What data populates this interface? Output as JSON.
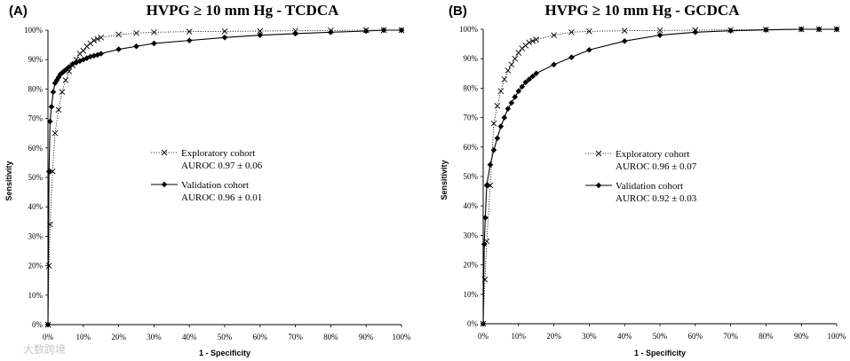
{
  "chart_data": [
    {
      "type": "line",
      "panel_label": "(A)",
      "title": "HVPG ≥ 10 mm Hg - TCDCA",
      "xlabel": "1 - Specificity",
      "ylabel": "Sensitivity",
      "xlim": [
        0,
        100
      ],
      "ylim": [
        0,
        100
      ],
      "x_ticks": [
        "0%",
        "10%",
        "20%",
        "30%",
        "40%",
        "50%",
        "60%",
        "70%",
        "80%",
        "90%",
        "100%"
      ],
      "y_ticks": [
        "0%",
        "10%",
        "20%",
        "30%",
        "40%",
        "50%",
        "60%",
        "70%",
        "80%",
        "90%",
        "100%"
      ],
      "legend": [
        {
          "name": "Exploratory cohort",
          "auroc": "AUROC 0.97 ± 0.06"
        },
        {
          "name": "Validation cohort",
          "auroc": "AUROC 0.96 ± 0.01"
        }
      ],
      "series": [
        {
          "name": "Exploratory cohort",
          "marker": "x",
          "line": "dotted",
          "x": [
            0,
            0.3,
            0.6,
            1.3,
            2,
            3,
            4,
            5,
            6,
            7,
            8,
            9,
            10,
            11,
            12,
            13,
            14,
            15,
            20,
            25,
            30,
            40,
            50,
            60,
            70,
            80,
            90,
            95,
            100
          ],
          "y": [
            0,
            20,
            34,
            52,
            65,
            73,
            79,
            83,
            86,
            88,
            90,
            92,
            93,
            94.5,
            95.5,
            96.5,
            97,
            97.5,
            98.5,
            99,
            99.3,
            99.5,
            99.6,
            99.7,
            99.8,
            99.9,
            100,
            100,
            100
          ]
        },
        {
          "name": "Validation cohort",
          "marker": "diamond",
          "line": "solid",
          "x": [
            0,
            0.3,
            0.6,
            1,
            1.5,
            2,
            2.5,
            3,
            3.5,
            4,
            4.5,
            5,
            5.5,
            6,
            7,
            8,
            9,
            10,
            11,
            12,
            13,
            14,
            15,
            20,
            25,
            30,
            40,
            50,
            60,
            70,
            80,
            90,
            95,
            100
          ],
          "y": [
            0,
            52,
            69,
            74,
            79,
            82,
            83,
            84,
            85,
            85.5,
            86,
            86.5,
            87,
            87.5,
            88.5,
            89,
            89.5,
            90,
            90.5,
            91,
            91.3,
            91.6,
            92,
            93.5,
            94.5,
            95.5,
            96.5,
            97.5,
            98.3,
            98.8,
            99.3,
            99.7,
            100,
            100
          ]
        }
      ]
    },
    {
      "type": "line",
      "panel_label": "(B)",
      "title": "HVPG ≥ 10 mm Hg - GCDCA",
      "xlabel": "1 - Specificity",
      "ylabel": "Sensitivity",
      "xlim": [
        0,
        100
      ],
      "ylim": [
        0,
        100
      ],
      "x_ticks": [
        "0%",
        "10%",
        "20%",
        "30%",
        "40%",
        "50%",
        "60%",
        "70%",
        "80%",
        "90%",
        "100%"
      ],
      "y_ticks": [
        "0%",
        "10%",
        "20%",
        "30%",
        "40%",
        "50%",
        "60%",
        "70%",
        "80%",
        "90%",
        "100%"
      ],
      "legend": [
        {
          "name": "Exploratory cohort",
          "auroc": "AUROC 0.96 ± 0.07"
        },
        {
          "name": "Validation cohort",
          "auroc": "AUROC 0.92 ± 0.03"
        }
      ],
      "series": [
        {
          "name": "Exploratory cohort",
          "marker": "x",
          "line": "dotted",
          "x": [
            0,
            0.5,
            1,
            2,
            3,
            4,
            5,
            6,
            7,
            8,
            9,
            10,
            11,
            12,
            13,
            14,
            15,
            20,
            25,
            30,
            40,
            50,
            60,
            70,
            80,
            90,
            95,
            100
          ],
          "y": [
            0,
            15,
            28,
            47,
            68,
            74,
            79,
            83,
            86,
            88,
            90,
            92,
            93.5,
            94.5,
            95.5,
            96,
            96.5,
            98,
            99,
            99.3,
            99.5,
            99.6,
            99.7,
            99.8,
            99.9,
            100,
            100,
            100
          ]
        },
        {
          "name": "Validation cohort",
          "marker": "diamond",
          "line": "solid",
          "x": [
            0,
            0.3,
            0.6,
            1,
            2,
            3,
            4,
            5,
            6,
            7,
            8,
            9,
            10,
            11,
            12,
            13,
            14,
            15,
            20,
            25,
            30,
            40,
            50,
            60,
            70,
            80,
            90,
            95,
            100
          ],
          "y": [
            0,
            27,
            36,
            47,
            54,
            59,
            63,
            67,
            70,
            73,
            75,
            77,
            79,
            80.5,
            82,
            83,
            84,
            85,
            88,
            90.5,
            93,
            96,
            98,
            99,
            99.5,
            99.8,
            100,
            100,
            100
          ]
        }
      ]
    }
  ],
  "watermark": "大数跨境"
}
